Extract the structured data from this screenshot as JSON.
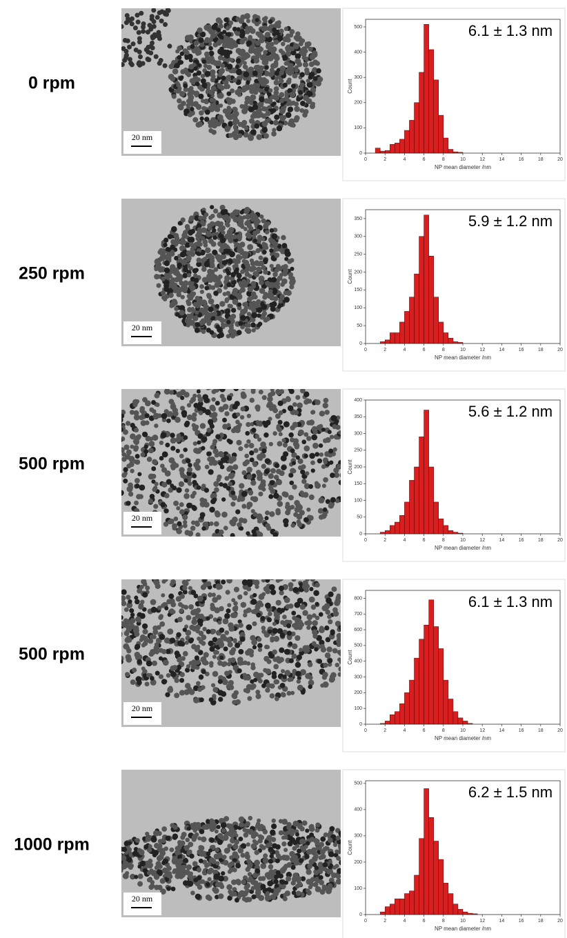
{
  "rows": [
    {
      "label": "0 rpm",
      "scale_bar": "20 nm"
    },
    {
      "label": "250 rpm",
      "scale_bar": "20 nm"
    },
    {
      "label": "500 rpm",
      "scale_bar": "20 nm"
    },
    {
      "label": "500 rpm",
      "scale_bar": "20 nm"
    },
    {
      "label": "1000 rpm",
      "scale_bar": "20 nm"
    }
  ],
  "chart_data": [
    {
      "type": "histogram",
      "annotation": "6.1 ± 1.3 nm",
      "xlabel": "NP mean diameter /nm",
      "ylabel": "Count",
      "color": "#d81e1e",
      "bins": [
        1.0,
        1.5,
        2.0,
        2.5,
        3.0,
        3.5,
        4.0,
        4.5,
        5.0,
        5.5,
        6.0,
        6.5,
        7.0,
        7.5,
        8.0,
        8.5,
        9.0,
        9.5,
        10.0
      ],
      "values": [
        20,
        8,
        10,
        35,
        40,
        55,
        90,
        130,
        200,
        320,
        510,
        410,
        290,
        150,
        60,
        15,
        5,
        3
      ],
      "xlim": [
        0,
        20
      ],
      "xticks": [
        0,
        2,
        4,
        6,
        8,
        10,
        12,
        14,
        16,
        18,
        20
      ],
      "ylim": [
        0,
        530
      ],
      "yticks": [
        0,
        100,
        200,
        300,
        400,
        500
      ]
    },
    {
      "type": "histogram",
      "annotation": "5.9 ± 1.2 nm",
      "xlabel": "NP mean diameter /nm",
      "ylabel": "Count",
      "color": "#d81e1e",
      "bins": [
        1.5,
        2.0,
        2.5,
        3.0,
        3.5,
        4.0,
        4.5,
        5.0,
        5.5,
        6.0,
        6.5,
        7.0,
        7.5,
        8.0,
        8.5,
        9.0,
        9.5,
        10.0
      ],
      "values": [
        5,
        10,
        30,
        30,
        60,
        90,
        130,
        195,
        300,
        360,
        245,
        130,
        60,
        30,
        15,
        5,
        3
      ],
      "xlim": [
        0,
        20
      ],
      "xticks": [
        0,
        2,
        4,
        6,
        8,
        10,
        12,
        14,
        16,
        18,
        20
      ],
      "ylim": [
        0,
        375
      ],
      "yticks": [
        0,
        50,
        100,
        150,
        200,
        250,
        300,
        350
      ]
    },
    {
      "type": "histogram",
      "annotation": "5.6 ± 1.2 nm",
      "xlabel": "NP mean diameter /nm",
      "ylabel": "Count",
      "color": "#d81e1e",
      "bins": [
        1.5,
        2.0,
        2.5,
        3.0,
        3.5,
        4.0,
        4.5,
        5.0,
        5.5,
        6.0,
        6.5,
        7.0,
        7.5,
        8.0,
        8.5,
        9.0,
        9.5,
        10.0
      ],
      "values": [
        5,
        10,
        25,
        35,
        55,
        95,
        160,
        200,
        290,
        370,
        200,
        95,
        45,
        25,
        10,
        5,
        2
      ],
      "xlim": [
        0,
        20
      ],
      "xticks": [
        0,
        2,
        4,
        6,
        8,
        10,
        12,
        14,
        16,
        18,
        20
      ],
      "ylim": [
        0,
        400
      ],
      "yticks": [
        0,
        50,
        100,
        150,
        200,
        250,
        300,
        350,
        400
      ]
    },
    {
      "type": "histogram",
      "annotation": "6.1 ± 1.3 nm",
      "xlabel": "NP mean diameter /nm",
      "ylabel": "Count",
      "color": "#d81e1e",
      "bins": [
        1.5,
        2.0,
        2.5,
        3.0,
        3.5,
        4.0,
        4.5,
        5.0,
        5.5,
        6.0,
        6.5,
        7.0,
        7.5,
        8.0,
        8.5,
        9.0,
        9.5,
        10.0,
        10.5,
        11.0
      ],
      "values": [
        5,
        20,
        60,
        80,
        130,
        200,
        280,
        420,
        540,
        630,
        790,
        620,
        480,
        280,
        160,
        80,
        40,
        20,
        5
      ],
      "xlim": [
        0,
        20
      ],
      "xticks": [
        0,
        2,
        4,
        6,
        8,
        10,
        12,
        14,
        16,
        18,
        20
      ],
      "ylim": [
        0,
        850
      ],
      "yticks": [
        0,
        100,
        200,
        300,
        400,
        500,
        600,
        700,
        800
      ]
    },
    {
      "type": "histogram",
      "annotation": "6.2 ± 1.5 nm",
      "xlabel": "NP mean diameter /nm",
      "ylabel": "Count",
      "color": "#d81e1e",
      "bins": [
        1.5,
        2.0,
        2.5,
        3.0,
        3.5,
        4.0,
        4.5,
        5.0,
        5.5,
        6.0,
        6.5,
        7.0,
        7.5,
        8.0,
        8.5,
        9.0,
        9.5,
        10.0,
        10.5,
        11.0,
        11.5
      ],
      "values": [
        10,
        30,
        40,
        60,
        60,
        80,
        90,
        150,
        290,
        480,
        370,
        280,
        210,
        120,
        80,
        40,
        20,
        10,
        5,
        3
      ],
      "xlim": [
        0,
        20
      ],
      "xticks": [
        0,
        2,
        4,
        6,
        8,
        10,
        12,
        14,
        16,
        18,
        20
      ],
      "ylim": [
        0,
        510
      ],
      "yticks": [
        0,
        100,
        200,
        300,
        400,
        500
      ]
    }
  ]
}
